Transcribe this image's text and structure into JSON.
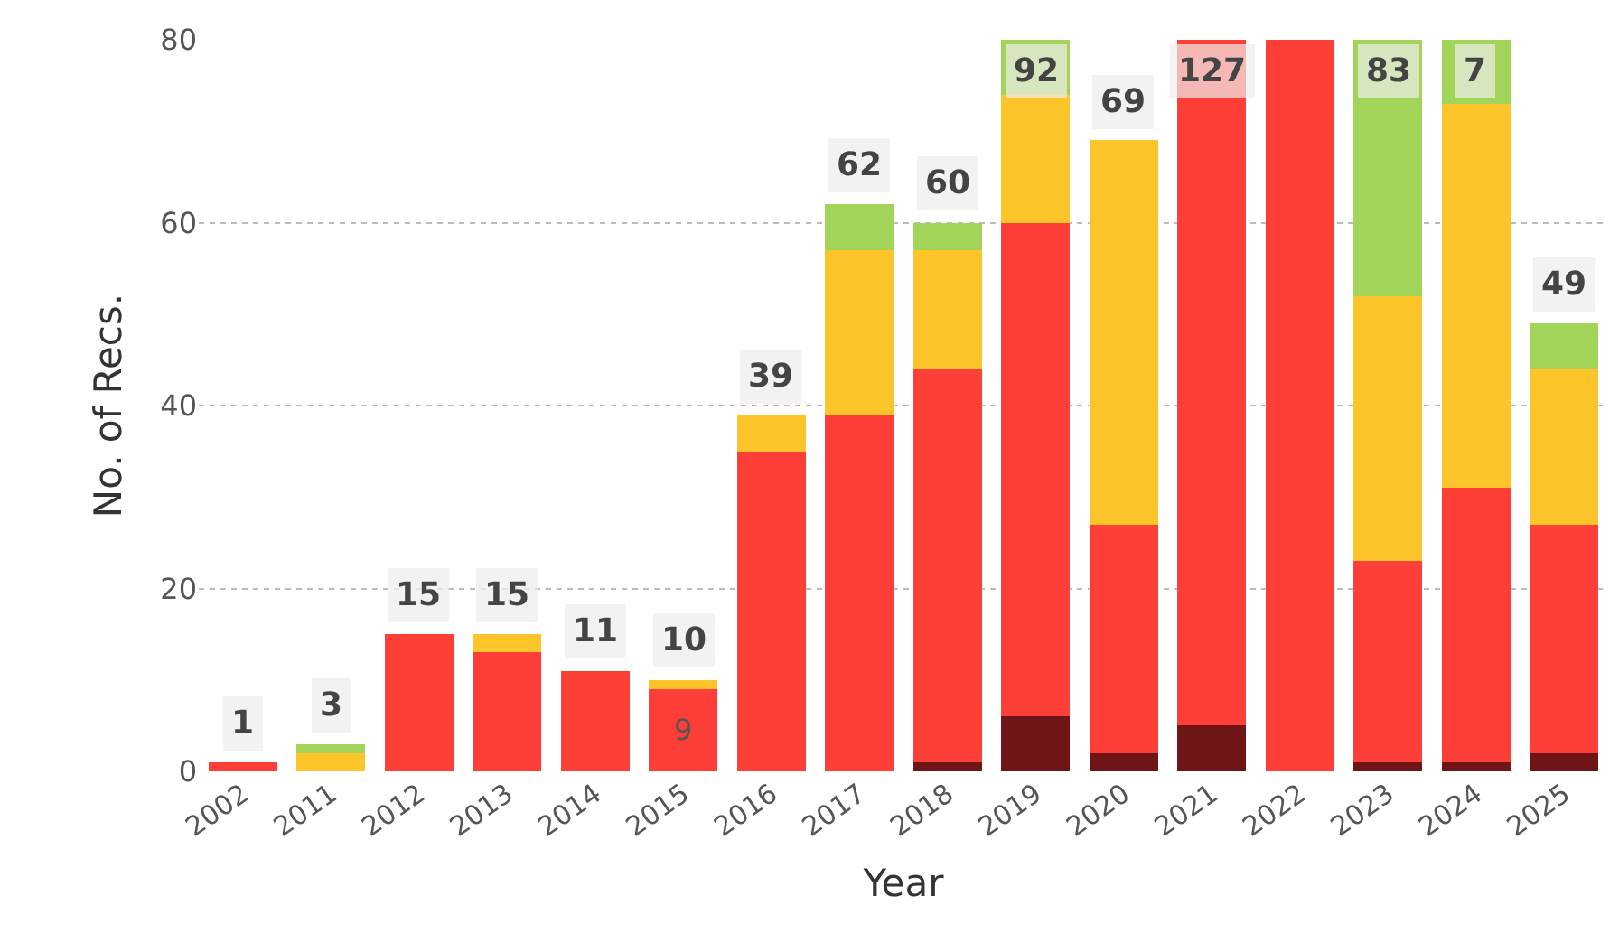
{
  "chart_data": {
    "type": "bar",
    "stacked": true,
    "xlabel": "Year",
    "ylabel": "No. of Recs.",
    "categories": [
      "2002",
      "2011",
      "2012",
      "2013",
      "2014",
      "2015",
      "2016",
      "2017",
      "2018",
      "2019",
      "2020",
      "2021",
      "2022",
      "2023",
      "2024",
      "2025"
    ],
    "series": [
      {
        "color": "#6f1518",
        "values": [
          0,
          0,
          0,
          0,
          0,
          0,
          0,
          0,
          1,
          6,
          2,
          5,
          0,
          1,
          1,
          2
        ]
      },
      {
        "color": "#fd3f38",
        "values": [
          1,
          0,
          15,
          13,
          11,
          9,
          35,
          39,
          43,
          54,
          25,
          75,
          80,
          22,
          30,
          25
        ],
        "value_labels": [
          null,
          null,
          null,
          null,
          null,
          "9",
          null,
          null,
          null,
          null,
          null,
          null,
          null,
          null,
          null,
          null
        ]
      },
      {
        "color": "#fdc52a",
        "values": [
          0,
          2,
          0,
          2,
          0,
          1,
          4,
          18,
          13,
          14,
          42,
          null,
          null,
          29,
          42,
          17
        ]
      },
      {
        "color": "#a2d45a",
        "values": [
          0,
          1,
          0,
          0,
          0,
          0,
          0,
          5,
          3,
          6,
          0,
          null,
          null,
          28,
          7,
          5
        ]
      }
    ],
    "totals": [
      "1",
      "3",
      "15",
      "15",
      "11",
      "10",
      "39",
      "62",
      "60",
      null,
      "69",
      null,
      null,
      null,
      null,
      "49"
    ],
    "annotations": [
      {
        "text": "92",
        "x": "2019",
        "y": 80
      },
      {
        "text": "127",
        "x": "2021",
        "y": 80
      },
      {
        "text": "83",
        "x": "2023",
        "y": 80
      },
      {
        "text": "7",
        "x": "2024",
        "y": 80
      }
    ],
    "ylim": [
      0,
      80
    ],
    "yticks": [
      0,
      20,
      40,
      60,
      80
    ],
    "grid": "y"
  }
}
